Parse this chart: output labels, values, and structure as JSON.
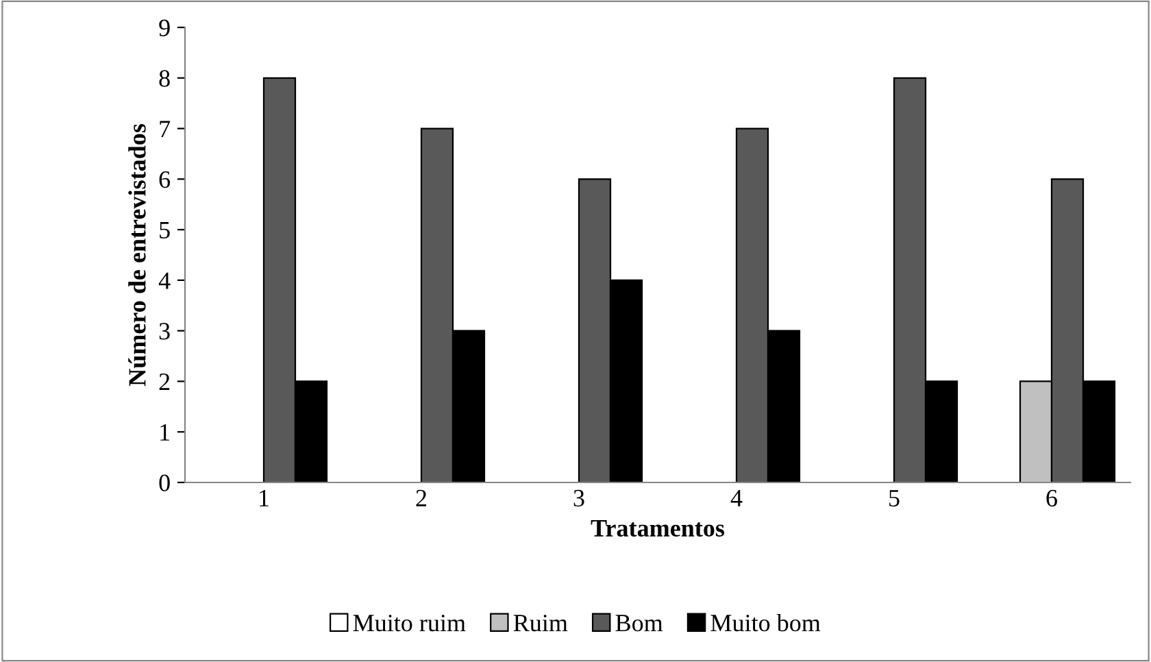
{
  "chart_data": {
    "type": "bar",
    "xlabel": "Tratamentos",
    "ylabel": "Número de entrevistados",
    "categories": [
      "1",
      "2",
      "3",
      "4",
      "5",
      "6"
    ],
    "series": [
      {
        "name": "Muito ruim",
        "color": "#ffffff",
        "values": [
          0,
          0,
          0,
          0,
          0,
          0
        ]
      },
      {
        "name": "Ruim",
        "color": "#c0c0c0",
        "values": [
          0,
          0,
          0,
          0,
          0,
          2
        ]
      },
      {
        "name": "Bom",
        "color": "#595959",
        "values": [
          8,
          7,
          6,
          7,
          8,
          6
        ]
      },
      {
        "name": "Muito bom",
        "color": "#000000",
        "values": [
          2,
          3,
          4,
          3,
          2,
          2
        ]
      }
    ],
    "ylim": [
      0,
      9
    ],
    "yticks": [
      0,
      1,
      2,
      3,
      4,
      5,
      6,
      7,
      8,
      9
    ],
    "grid": false,
    "legend": "bottom"
  }
}
